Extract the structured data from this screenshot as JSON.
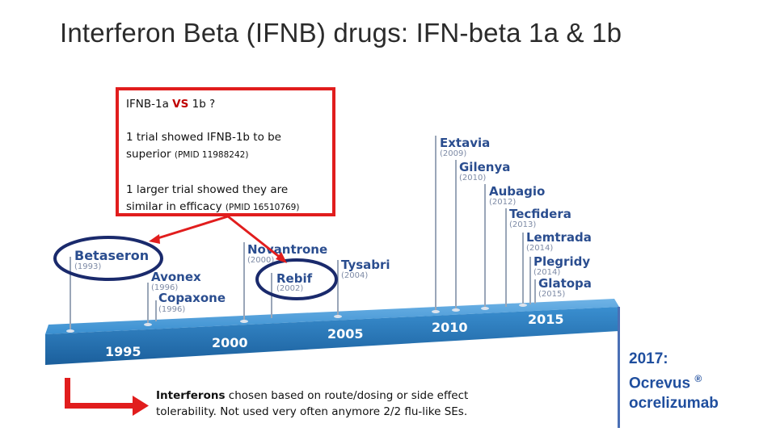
{
  "title": "Interferon Beta (IFNB) drugs: IFN-beta 1a & 1b",
  "comparison": {
    "q_prefix": "IFNB-1a ",
    "q_vs": "VS",
    "q_suffix": " 1b ?",
    "trial1_line1": "1 trial showed IFNB-1b to be",
    "trial1_line2": "superior ",
    "trial1_pmid": "(PMID 11988242)",
    "trial2_line1": "1 larger trial showed they are",
    "trial2_line2": "similar in efficacy ",
    "trial2_pmid": "(PMID 16510769)"
  },
  "timeline": {
    "years": [
      "1995",
      "2000",
      "2005",
      "2010",
      "2015"
    ],
    "drugs": [
      {
        "name": "Betaseron",
        "year": "(1993)"
      },
      {
        "name": "Avonex",
        "year": "(1996)"
      },
      {
        "name": "Copaxone",
        "year": "(1996)"
      },
      {
        "name": "Novantrone",
        "year": "(2000)"
      },
      {
        "name": "Rebif",
        "year": "(2002)"
      },
      {
        "name": "Tysabri",
        "year": "(2004)"
      },
      {
        "name": "Extavia",
        "year": "(2009)"
      },
      {
        "name": "Gilenya",
        "year": "(2010)"
      },
      {
        "name": "Aubagio",
        "year": "(2012)"
      },
      {
        "name": "Tecfidera",
        "year": "(2013)"
      },
      {
        "name": "Lemtrada",
        "year": "(2014)"
      },
      {
        "name": "Plegridy",
        "year": "(2014)"
      },
      {
        "name": "Glatopa",
        "year": "(2015)"
      }
    ]
  },
  "note": {
    "bold": "Interferons",
    "rest": " chosen based on route/dosing or side effect tolerability. Not used very often anymore 2/2 flu-like SEs."
  },
  "ocrevus": {
    "line1": "2017:",
    "line2": "Ocrevus ",
    "reg": "®",
    "line3": "ocrelizumab"
  },
  "colors": {
    "accent_red": "#e11d1d",
    "ring_navy": "#1a2a6c",
    "timeline_blue": "#1f6fb5",
    "drug_text": "#2a4d8f"
  }
}
